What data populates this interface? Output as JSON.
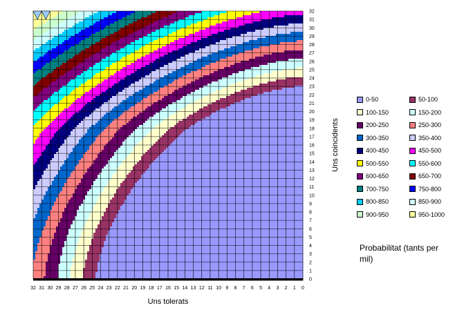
{
  "chart_data": {
    "type": "heatmap",
    "title": "",
    "xlabel": "Uns tolerats",
    "ylabel": "Uns coincidents",
    "x_ticks": [
      "32",
      "31",
      "30",
      "29",
      "28",
      "27",
      "26",
      "25",
      "24",
      "23",
      "22",
      "21",
      "20",
      "19",
      "18",
      "17",
      "16",
      "15",
      "14",
      "13",
      "12",
      "11",
      "10",
      "9",
      "8",
      "7",
      "6",
      "5",
      "4",
      "3",
      "2",
      "1",
      "0"
    ],
    "y_ticks": [
      "0",
      "1",
      "2",
      "3",
      "4",
      "5",
      "6",
      "7",
      "8",
      "9",
      "10",
      "11",
      "12",
      "13",
      "14",
      "15",
      "16",
      "17",
      "18",
      "19",
      "20",
      "21",
      "22",
      "23",
      "24",
      "25",
      "26",
      "27",
      "28",
      "29",
      "30",
      "31",
      "32"
    ],
    "xlim": [
      32,
      0
    ],
    "ylim": [
      0,
      32
    ],
    "grid": true,
    "legend_title": "Probabilitat (tants per mil)",
    "legend_position": "right",
    "bands": [
      {
        "label": "0-50",
        "color": "#9999FF"
      },
      {
        "label": "50-100",
        "color": "#993366"
      },
      {
        "label": "100-150",
        "color": "#FFFFCC"
      },
      {
        "label": "150-200",
        "color": "#CCFFFF"
      },
      {
        "label": "200-250",
        "color": "#660066"
      },
      {
        "label": "250-300",
        "color": "#FF8080"
      },
      {
        "label": "300-350",
        "color": "#0066CC"
      },
      {
        "label": "350-400",
        "color": "#CCCCFF"
      },
      {
        "label": "400-450",
        "color": "#000080"
      },
      {
        "label": "450-500",
        "color": "#FF00FF"
      },
      {
        "label": "500-550",
        "color": "#FFFF00"
      },
      {
        "label": "550-600",
        "color": "#00FFFF"
      },
      {
        "label": "600-650",
        "color": "#800080"
      },
      {
        "label": "650-700",
        "color": "#800000"
      },
      {
        "label": "700-750",
        "color": "#008080"
      },
      {
        "label": "750-800",
        "color": "#0000FF"
      },
      {
        "label": "800-850",
        "color": "#00CCFF"
      },
      {
        "label": "850-900",
        "color": "#CCFFFF"
      },
      {
        "label": "900-950",
        "color": "#CCFFCC"
      },
      {
        "label": "950-1000",
        "color": "#FFFF99"
      }
    ]
  }
}
